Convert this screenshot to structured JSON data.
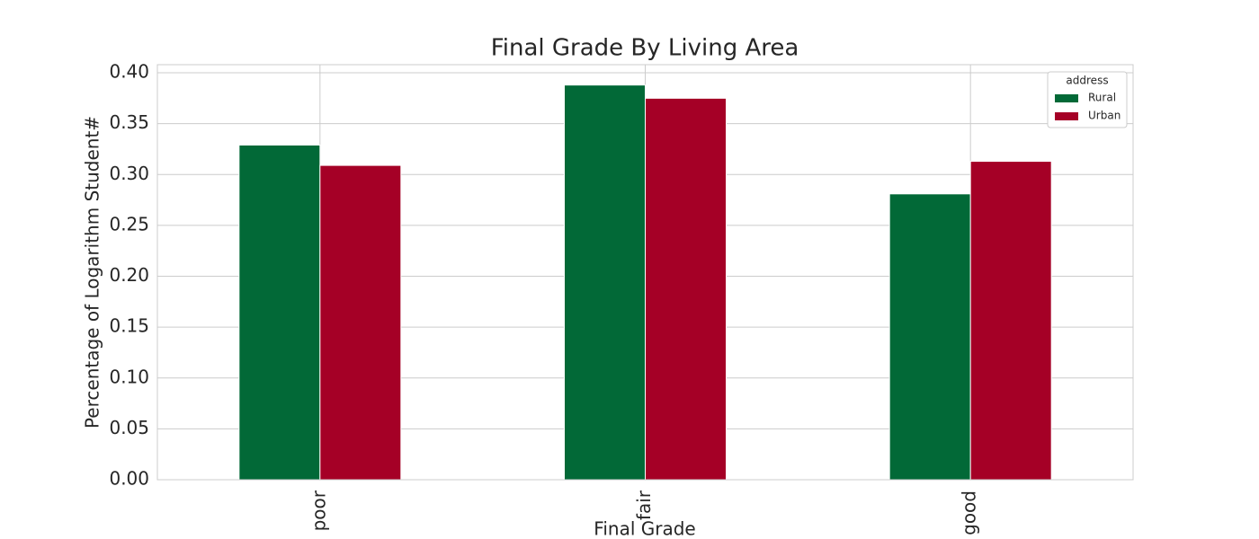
{
  "chart_data": {
    "type": "bar",
    "title": "Final Grade By Living Area",
    "x_label": "Final Grade",
    "y_label": "Percentage of Logarithm Student#",
    "categories": [
      "poor",
      "fair",
      "good"
    ],
    "series": [
      {
        "name": "Rural",
        "color": "#026937",
        "values": [
          0.329,
          0.388,
          0.281
        ]
      },
      {
        "name": "Urban",
        "color": "#a50026",
        "values": [
          0.309,
          0.375,
          0.313
        ]
      }
    ],
    "ylim": [
      0,
      0.408
    ],
    "yticks": [
      {
        "value": 0,
        "label": "0.00"
      },
      {
        "value": 0.05,
        "label": "0.05"
      },
      {
        "value": 0.1,
        "label": "0.10"
      },
      {
        "value": 0.15,
        "label": "0.15"
      },
      {
        "value": 0.2,
        "label": "0.20"
      },
      {
        "value": 0.25,
        "label": "0.25"
      },
      {
        "value": 0.3,
        "label": "0.30"
      },
      {
        "value": 0.35,
        "label": "0.35"
      },
      {
        "value": 0.4,
        "label": "0.40"
      }
    ],
    "grid": true,
    "legend_title": "address",
    "legend_position": "upper right"
  }
}
